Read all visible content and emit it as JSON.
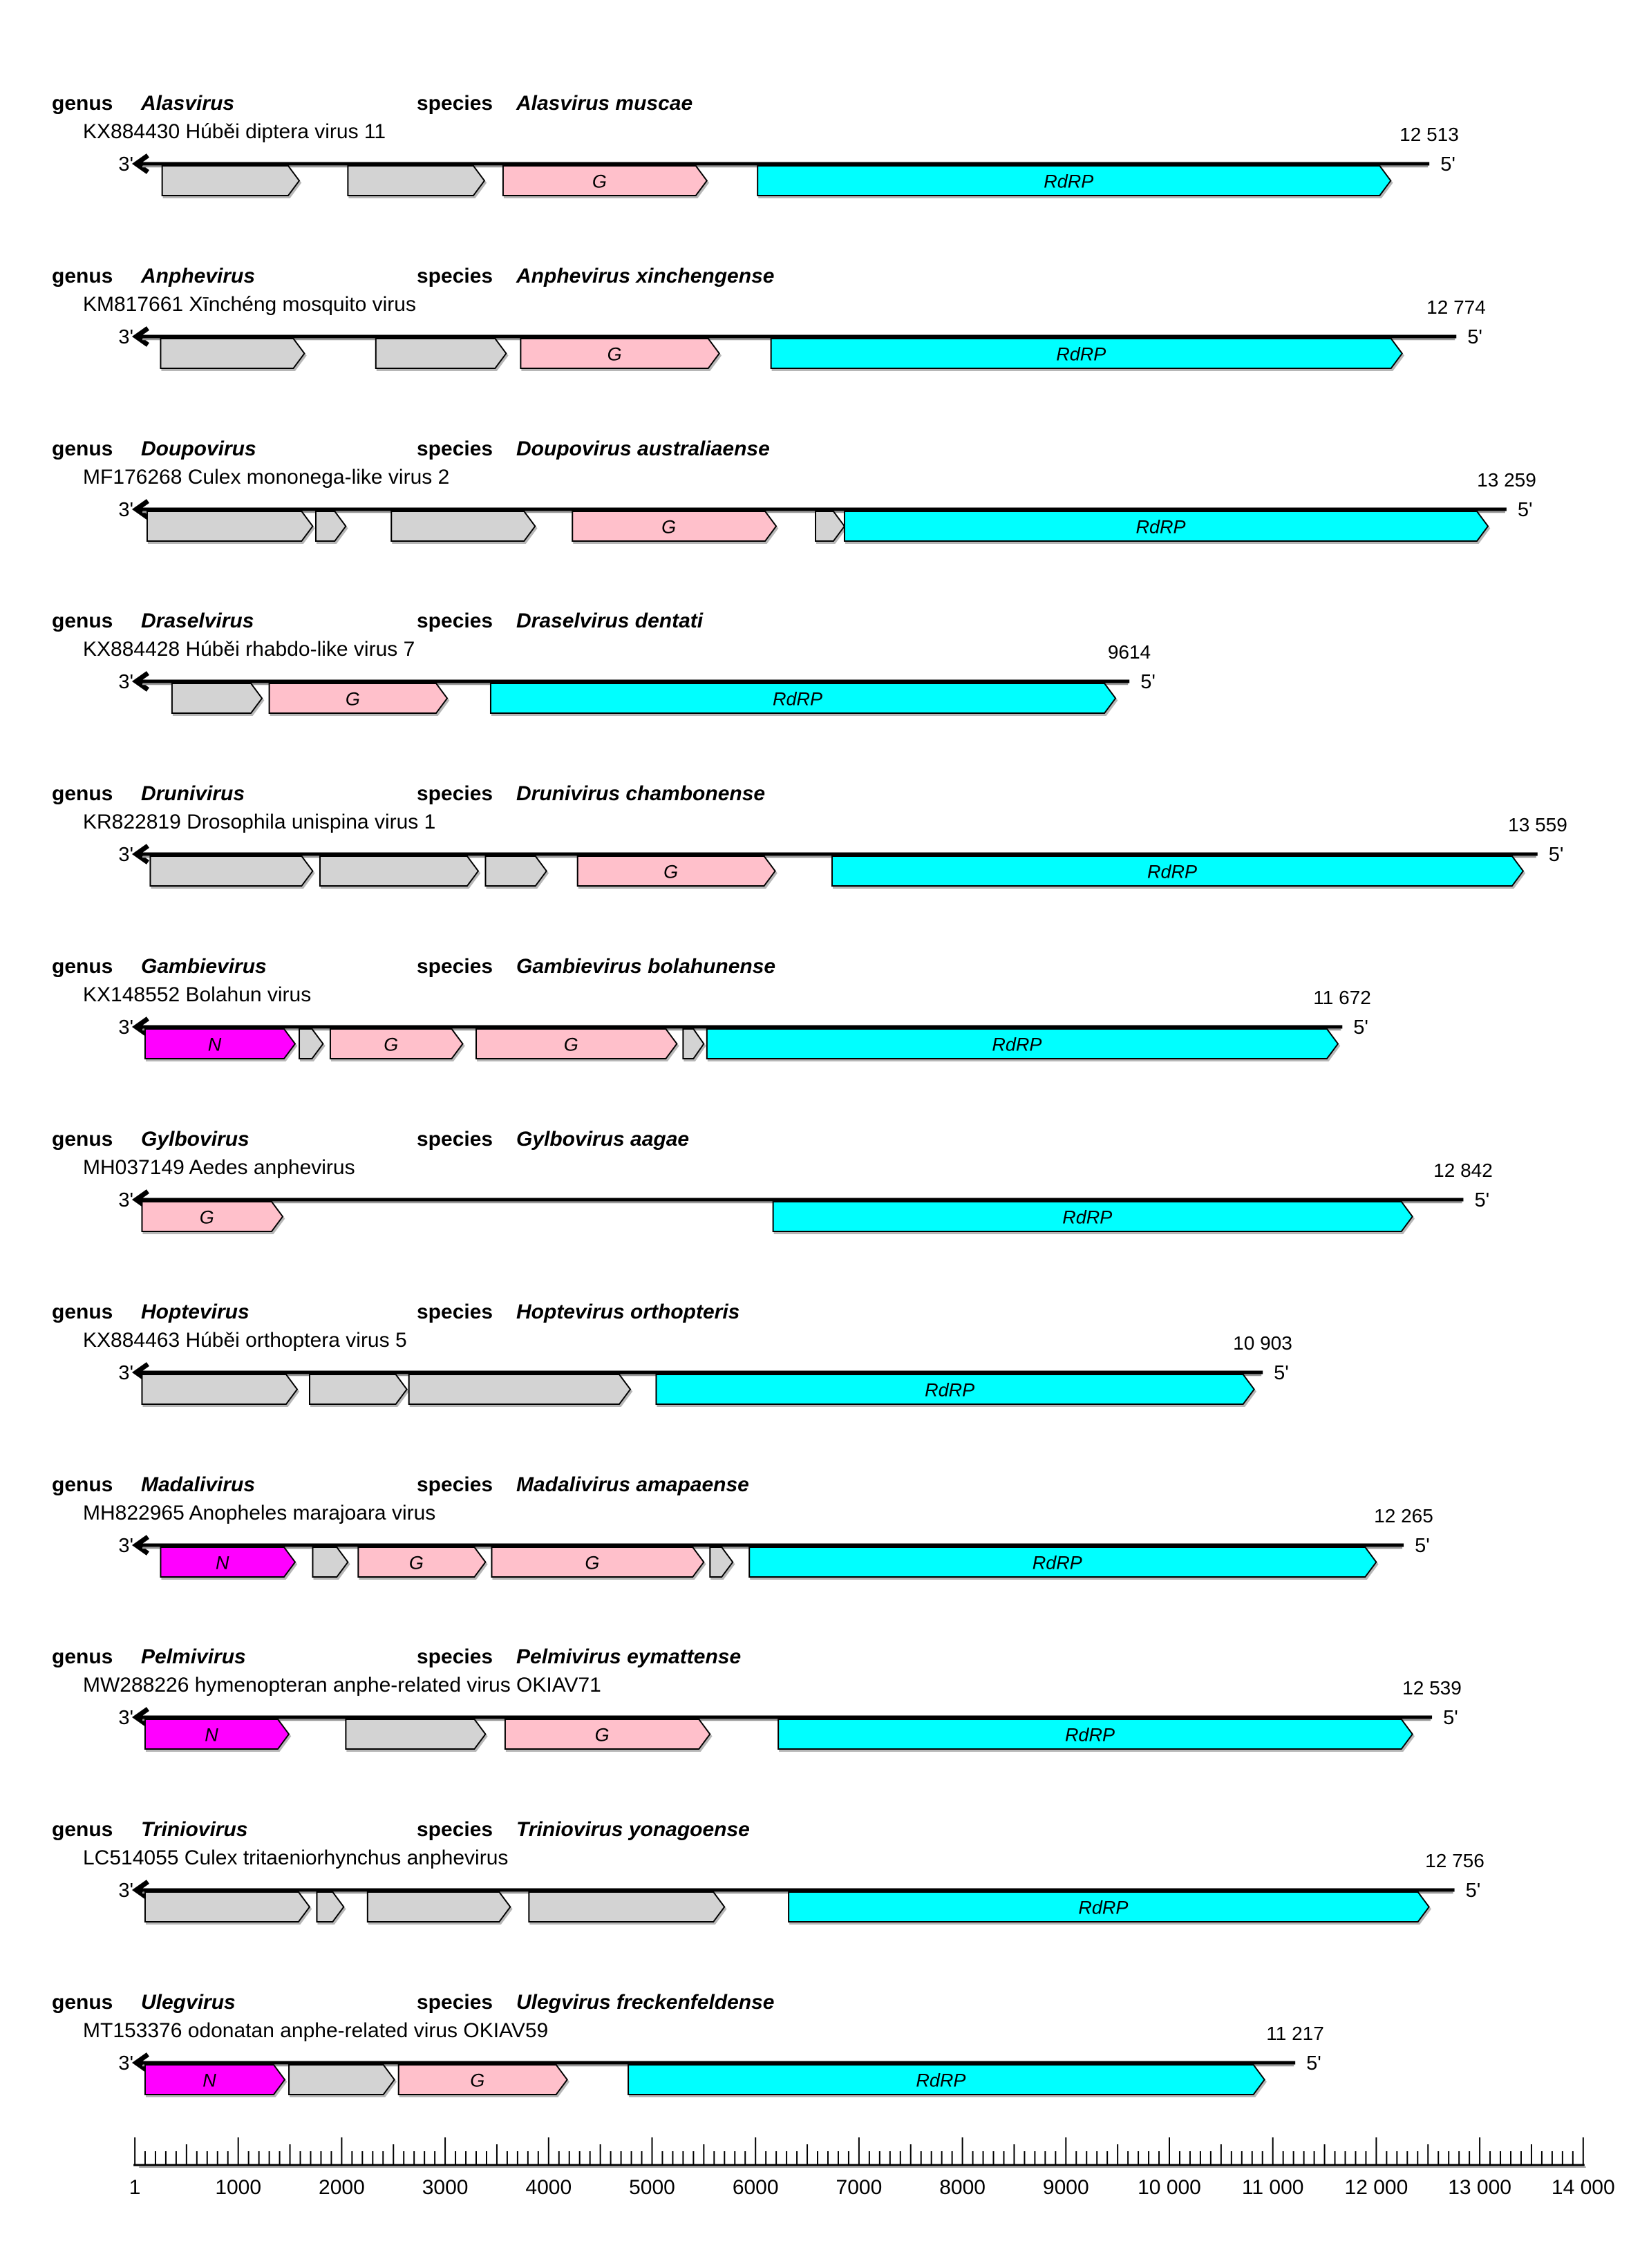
{
  "labels": {
    "genus": "genus",
    "species": "species",
    "three_prime": "3'",
    "five_prime": "5'"
  },
  "colors": {
    "gray_gene": "#D3D3D3",
    "G_gene": "#FFC0CB",
    "N_gene": "#FF00FF",
    "RdRP_gene": "#00FFFF",
    "outline": "#000000",
    "genome_line": "#000000",
    "shadow": "#999999",
    "background": "#FFFFFF"
  },
  "viruses": [
    {
      "genus": "Alasvirus",
      "species": "Alasvirus muscae",
      "accession_line": "KX884430 Húběi diptera virus 11",
      "length": 12513,
      "length_label": "12 513",
      "genes": [
        {
          "type": "gray",
          "label": "",
          "start": 265,
          "end": 1590
        },
        {
          "type": "gray",
          "label": "",
          "start": 2060,
          "end": 3380
        },
        {
          "type": "G",
          "label": "G",
          "start": 3560,
          "end": 5530
        },
        {
          "type": "RdRP",
          "label": "RdRP",
          "start": 6020,
          "end": 12140
        }
      ]
    },
    {
      "genus": "Anphevirus",
      "species": "Anphevirus xinchengense",
      "accession_line": "KM817661 Xīnchéng mosquito virus",
      "length": 12774,
      "length_label": "12 774",
      "genes": [
        {
          "type": "gray",
          "label": "",
          "start": 250,
          "end": 1640
        },
        {
          "type": "gray",
          "label": "",
          "start": 2330,
          "end": 3590
        },
        {
          "type": "G",
          "label": "G",
          "start": 3730,
          "end": 5650
        },
        {
          "type": "RdRP",
          "label": "RdRP",
          "start": 6150,
          "end": 12250
        }
      ]
    },
    {
      "genus": "Doupovirus",
      "species": "Doupovirus australiaense",
      "accession_line": "MF176268 Culex mononega-like virus 2",
      "length": 13259,
      "length_label": "13 259",
      "genes": [
        {
          "type": "gray",
          "label": "",
          "start": 120,
          "end": 1720
        },
        {
          "type": "gray",
          "label": "",
          "start": 1750,
          "end": 2040
        },
        {
          "type": "gray",
          "label": "",
          "start": 2480,
          "end": 3870
        },
        {
          "type": "G",
          "label": "G",
          "start": 4230,
          "end": 6200
        },
        {
          "type": "gray",
          "label": "",
          "start": 6580,
          "end": 6860
        },
        {
          "type": "RdRP",
          "label": "RdRP",
          "start": 6860,
          "end": 13080
        }
      ]
    },
    {
      "genus": "Draselvirus",
      "species": "Draselvirus dentati",
      "accession_line": "KX884428 Húběi rhabdo-like virus 7",
      "length": 9614,
      "length_label": "9614",
      "genes": [
        {
          "type": "gray",
          "label": "",
          "start": 360,
          "end": 1230
        },
        {
          "type": "G",
          "label": "G",
          "start": 1300,
          "end": 3020
        },
        {
          "type": "RdRP",
          "label": "RdRP",
          "start": 3440,
          "end": 9480
        }
      ]
    },
    {
      "genus": "Drunivirus",
      "species": "Drunivirus chambonense",
      "accession_line": "KR822819 Drosophila unispina virus 1",
      "length": 13559,
      "length_label": "13 559",
      "genes": [
        {
          "type": "gray",
          "label": "",
          "start": 150,
          "end": 1720
        },
        {
          "type": "gray",
          "label": "",
          "start": 1790,
          "end": 3320
        },
        {
          "type": "gray",
          "label": "",
          "start": 3390,
          "end": 3980
        },
        {
          "type": "G",
          "label": "G",
          "start": 4280,
          "end": 6190
        },
        {
          "type": "RdRP",
          "label": "RdRP",
          "start": 6740,
          "end": 13420
        }
      ]
    },
    {
      "genus": "Gambievirus",
      "species": "Gambievirus bolahunense",
      "accession_line": "KX148552 Bolahun virus",
      "length": 11672,
      "length_label": "11 672",
      "genes": [
        {
          "type": "N",
          "label": "N",
          "start": 100,
          "end": 1550
        },
        {
          "type": "gray",
          "label": "",
          "start": 1590,
          "end": 1820
        },
        {
          "type": "G",
          "label": "G",
          "start": 1890,
          "end": 3170
        },
        {
          "type": "G",
          "label": "G",
          "start": 3300,
          "end": 5240
        },
        {
          "type": "gray",
          "label": "",
          "start": 5300,
          "end": 5500
        },
        {
          "type": "RdRP",
          "label": "RdRP",
          "start": 5530,
          "end": 11630
        }
      ]
    },
    {
      "genus": "Gylbovirus",
      "species": "Gylbovirus aagae",
      "accession_line": "MH037149 Aedes anphevirus",
      "length": 12842,
      "length_label": "12 842",
      "genes": [
        {
          "type": "G",
          "label": "G",
          "start": 70,
          "end": 1430
        },
        {
          "type": "RdRP",
          "label": "RdRP",
          "start": 6170,
          "end": 12350
        }
      ]
    },
    {
      "genus": "Hoptevirus",
      "species": "Hoptevirus orthopteris",
      "accession_line": "KX884463 Húběi orthoptera virus 5",
      "length": 10903,
      "length_label": "10 903",
      "genes": [
        {
          "type": "gray",
          "label": "",
          "start": 70,
          "end": 1570
        },
        {
          "type": "gray",
          "label": "",
          "start": 1690,
          "end": 2630
        },
        {
          "type": "gray",
          "label": "",
          "start": 2650,
          "end": 4790
        },
        {
          "type": "RdRP",
          "label": "RdRP",
          "start": 5040,
          "end": 10820
        }
      ]
    },
    {
      "genus": "Madalivirus",
      "species": "Madalivirus amapaense",
      "accession_line": "MH822965 Anopheles marajoara virus",
      "length": 12265,
      "length_label": "12 265",
      "genes": [
        {
          "type": "N",
          "label": "N",
          "start": 250,
          "end": 1550
        },
        {
          "type": "gray",
          "label": "",
          "start": 1720,
          "end": 2060
        },
        {
          "type": "G",
          "label": "G",
          "start": 2160,
          "end": 3390
        },
        {
          "type": "G",
          "label": "G",
          "start": 3450,
          "end": 5500
        },
        {
          "type": "gray",
          "label": "",
          "start": 5560,
          "end": 5780
        },
        {
          "type": "RdRP",
          "label": "RdRP",
          "start": 5940,
          "end": 12000
        }
      ]
    },
    {
      "genus": "Pelmivirus",
      "species": "Pelmivirus eymattense",
      "accession_line": "MW288226 hymenopteran anphe-related virus OKIAV71",
      "length": 12539,
      "length_label": "12 539",
      "genes": [
        {
          "type": "N",
          "label": "N",
          "start": 100,
          "end": 1490
        },
        {
          "type": "gray",
          "label": "",
          "start": 2040,
          "end": 3390
        },
        {
          "type": "G",
          "label": "G",
          "start": 3580,
          "end": 5560
        },
        {
          "type": "RdRP",
          "label": "RdRP",
          "start": 6220,
          "end": 12350
        }
      ]
    },
    {
      "genus": "Triniovirus",
      "species": "Triniovirus yonagoense",
      "accession_line": "LC514055 Culex tritaeniorhynchus anphevirus",
      "length": 12756,
      "length_label": "12 756",
      "genes": [
        {
          "type": "gray",
          "label": "",
          "start": 100,
          "end": 1690
        },
        {
          "type": "gray",
          "label": "",
          "start": 1760,
          "end": 2020
        },
        {
          "type": "gray",
          "label": "",
          "start": 2250,
          "end": 3630
        },
        {
          "type": "gray",
          "label": "",
          "start": 3810,
          "end": 5700
        },
        {
          "type": "RdRP",
          "label": "RdRP",
          "start": 6320,
          "end": 12510
        }
      ]
    },
    {
      "genus": "Ulegvirus",
      "species": "Ulegvirus freckenfeldense",
      "accession_line": "MT153376 odonatan anphe-related virus OKIAV59",
      "length": 11217,
      "length_label": "11 217",
      "genes": [
        {
          "type": "N",
          "label": "N",
          "start": 100,
          "end": 1450
        },
        {
          "type": "gray",
          "label": "",
          "start": 1490,
          "end": 2510
        },
        {
          "type": "G",
          "label": "G",
          "start": 2550,
          "end": 4180
        },
        {
          "type": "RdRP",
          "label": "RdRP",
          "start": 4770,
          "end": 10920
        }
      ]
    }
  ],
  "ruler": {
    "min": 1,
    "max": 14000,
    "minor_step": 100,
    "medium_step": 500,
    "major_step": 1000,
    "labels": [
      {
        "value": 1,
        "text": "1"
      },
      {
        "value": 1000,
        "text": "1000"
      },
      {
        "value": 2000,
        "text": "2000"
      },
      {
        "value": 3000,
        "text": "3000"
      },
      {
        "value": 4000,
        "text": "4000"
      },
      {
        "value": 5000,
        "text": "5000"
      },
      {
        "value": 6000,
        "text": "6000"
      },
      {
        "value": 7000,
        "text": "7000"
      },
      {
        "value": 8000,
        "text": "8000"
      },
      {
        "value": 9000,
        "text": "9000"
      },
      {
        "value": 10000,
        "text": "10 000"
      },
      {
        "value": 11000,
        "text": "11 000"
      },
      {
        "value": 12000,
        "text": "12 000"
      },
      {
        "value": 13000,
        "text": "13 000"
      },
      {
        "value": 14000,
        "text": "14 000"
      }
    ]
  }
}
